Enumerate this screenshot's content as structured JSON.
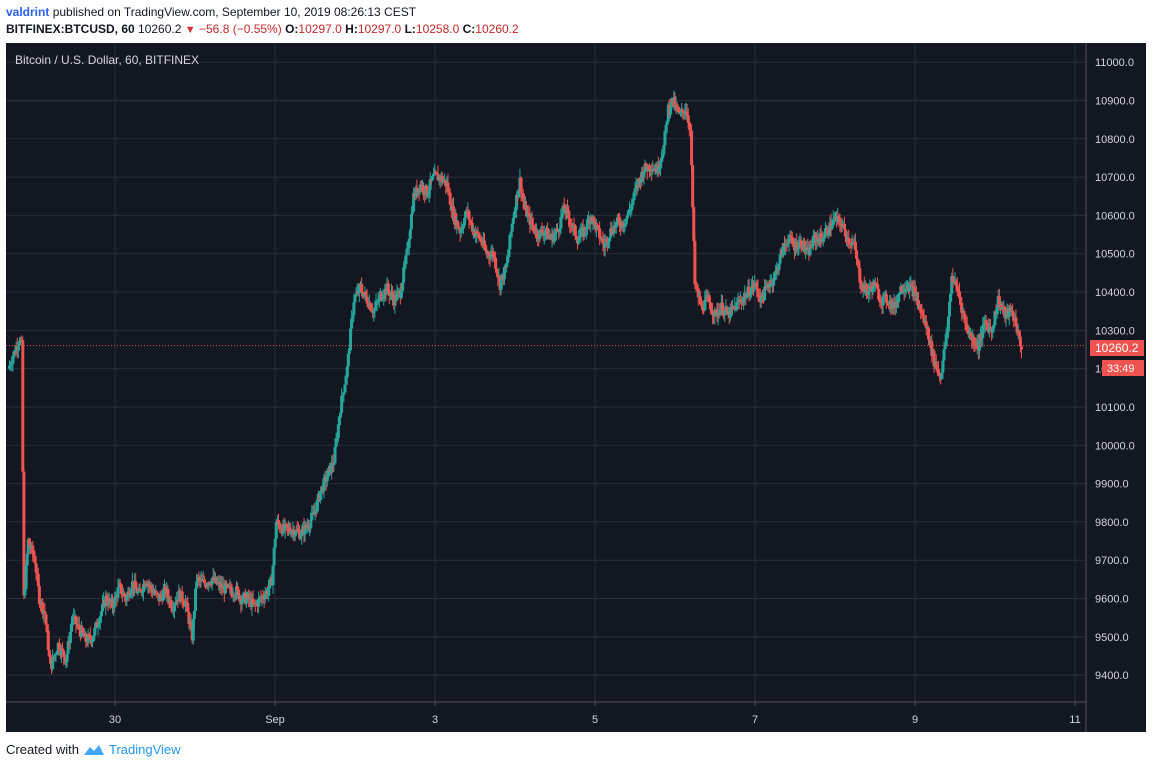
{
  "header": {
    "user": "valdrint",
    "published_text": "published on TradingView.com, September 10, 2019 08:26:13 CEST",
    "symbol": "BITFINEX:BTCUSD, 60",
    "last": "10260.2",
    "change": "−56.8 (−0.55%)",
    "open_label": "O:",
    "open": "10297.0",
    "high_label": "H:",
    "high": "10297.0",
    "low_label": "L:",
    "low": "10258.0",
    "close_label": "C:",
    "close": "10260.2"
  },
  "footer": {
    "created_with": "Created with",
    "brand": "TradingView"
  },
  "colors": {
    "background": "#131722",
    "up": "#26a69a",
    "down": "#ef5350",
    "grid": "#2a2e39",
    "axis_text": "#d1d4dc"
  },
  "chart_data": {
    "type": "candlestick",
    "title": "Bitcoin / U.S. Dollar, 60, BITFINEX",
    "ylim": [
      9330,
      11050
    ],
    "y_ticks": [
      9400,
      9500,
      9600,
      9700,
      9800,
      9900,
      10000,
      10100,
      10200,
      10300,
      10400,
      10500,
      10600,
      10700,
      10800,
      10900,
      11000
    ],
    "y_tick_labels": [
      "9400.0",
      "9500.0",
      "9600.0",
      "9700.0",
      "9800.0",
      "9900.0",
      "10000.0",
      "10100.0",
      "10200.0",
      "10300.0",
      "10400.0",
      "10500.0",
      "10600.0",
      "10700.0",
      "10800.0",
      "10900.0",
      "11000.0"
    ],
    "x_ticks": [
      "30",
      "Sep",
      "3",
      "5",
      "7",
      "9",
      "11"
    ],
    "price_line": 10260.2,
    "price_label": "10260.2",
    "countdown_label": "33:49",
    "grid": true,
    "path": [
      [
        0,
        10200
      ],
      [
        10,
        10280
      ],
      [
        12,
        10260
      ],
      [
        14,
        9600
      ],
      [
        18,
        9750
      ],
      [
        24,
        9700
      ],
      [
        28,
        9600
      ],
      [
        33,
        9560
      ],
      [
        38,
        9420
      ],
      [
        45,
        9480
      ],
      [
        52,
        9440
      ],
      [
        58,
        9550
      ],
      [
        64,
        9520
      ],
      [
        70,
        9490
      ],
      [
        76,
        9500
      ],
      [
        82,
        9550
      ],
      [
        88,
        9600
      ],
      [
        94,
        9580
      ],
      [
        100,
        9630
      ],
      [
        106,
        9600
      ],
      [
        112,
        9640
      ],
      [
        118,
        9610
      ],
      [
        124,
        9650
      ],
      [
        130,
        9620
      ],
      [
        136,
        9600
      ],
      [
        142,
        9620
      ],
      [
        148,
        9580
      ],
      [
        154,
        9610
      ],
      [
        160,
        9590
      ],
      [
        166,
        9500
      ],
      [
        170,
        9650
      ],
      [
        176,
        9640
      ],
      [
        184,
        9650
      ],
      [
        192,
        9630
      ],
      [
        200,
        9620
      ],
      [
        206,
        9620
      ],
      [
        210,
        9600
      ],
      [
        216,
        9600
      ],
      [
        222,
        9580
      ],
      [
        228,
        9600
      ],
      [
        234,
        9620
      ],
      [
        238,
        9650
      ],
      [
        242,
        9800
      ],
      [
        248,
        9780
      ],
      [
        256,
        9780
      ],
      [
        264,
        9770
      ],
      [
        270,
        9790
      ],
      [
        276,
        9820
      ],
      [
        282,
        9880
      ],
      [
        288,
        9920
      ],
      [
        294,
        9960
      ],
      [
        300,
        10100
      ],
      [
        306,
        10200
      ],
      [
        312,
        10380
      ],
      [
        318,
        10410
      ],
      [
        324,
        10380
      ],
      [
        330,
        10350
      ],
      [
        336,
        10390
      ],
      [
        342,
        10410
      ],
      [
        348,
        10380
      ],
      [
        354,
        10400
      ],
      [
        360,
        10500
      ],
      [
        366,
        10650
      ],
      [
        372,
        10680
      ],
      [
        378,
        10660
      ],
      [
        384,
        10700
      ],
      [
        390,
        10700
      ],
      [
        396,
        10680
      ],
      [
        402,
        10600
      ],
      [
        408,
        10560
      ],
      [
        414,
        10610
      ],
      [
        420,
        10560
      ],
      [
        426,
        10540
      ],
      [
        432,
        10500
      ],
      [
        438,
        10500
      ],
      [
        444,
        10420
      ],
      [
        450,
        10470
      ],
      [
        456,
        10600
      ],
      [
        462,
        10690
      ],
      [
        466,
        10620
      ],
      [
        472,
        10580
      ],
      [
        478,
        10550
      ],
      [
        484,
        10560
      ],
      [
        490,
        10540
      ],
      [
        496,
        10560
      ],
      [
        502,
        10620
      ],
      [
        508,
        10580
      ],
      [
        514,
        10540
      ],
      [
        520,
        10560
      ],
      [
        526,
        10600
      ],
      [
        532,
        10560
      ],
      [
        538,
        10520
      ],
      [
        544,
        10560
      ],
      [
        550,
        10580
      ],
      [
        556,
        10580
      ],
      [
        562,
        10620
      ],
      [
        568,
        10680
      ],
      [
        574,
        10720
      ],
      [
        580,
        10730
      ],
      [
        586,
        10720
      ],
      [
        592,
        10780
      ],
      [
        596,
        10880
      ],
      [
        600,
        10900
      ],
      [
        606,
        10860
      ],
      [
        612,
        10880
      ],
      [
        616,
        10820
      ],
      [
        620,
        10420
      ],
      [
        626,
        10360
      ],
      [
        632,
        10380
      ],
      [
        638,
        10340
      ],
      [
        644,
        10360
      ],
      [
        650,
        10340
      ],
      [
        656,
        10360
      ],
      [
        662,
        10380
      ],
      [
        668,
        10400
      ],
      [
        674,
        10420
      ],
      [
        680,
        10380
      ],
      [
        686,
        10420
      ],
      [
        692,
        10440
      ],
      [
        698,
        10500
      ],
      [
        704,
        10540
      ],
      [
        710,
        10520
      ],
      [
        716,
        10530
      ],
      [
        722,
        10500
      ],
      [
        728,
        10540
      ],
      [
        734,
        10540
      ],
      [
        740,
        10560
      ],
      [
        746,
        10590
      ],
      [
        752,
        10580
      ],
      [
        758,
        10540
      ],
      [
        764,
        10520
      ],
      [
        770,
        10420
      ],
      [
        776,
        10400
      ],
      [
        782,
        10420
      ],
      [
        788,
        10380
      ],
      [
        794,
        10380
      ],
      [
        800,
        10360
      ],
      [
        806,
        10410
      ],
      [
        812,
        10420
      ],
      [
        818,
        10400
      ],
      [
        824,
        10350
      ],
      [
        830,
        10300
      ],
      [
        836,
        10220
      ],
      [
        842,
        10180
      ],
      [
        848,
        10300
      ],
      [
        852,
        10440
      ],
      [
        858,
        10400
      ],
      [
        864,
        10320
      ],
      [
        870,
        10280
      ],
      [
        876,
        10260
      ],
      [
        882,
        10320
      ],
      [
        888,
        10300
      ],
      [
        894,
        10380
      ],
      [
        900,
        10340
      ],
      [
        906,
        10350
      ],
      [
        910,
        10320
      ],
      [
        914,
        10260
      ]
    ]
  }
}
